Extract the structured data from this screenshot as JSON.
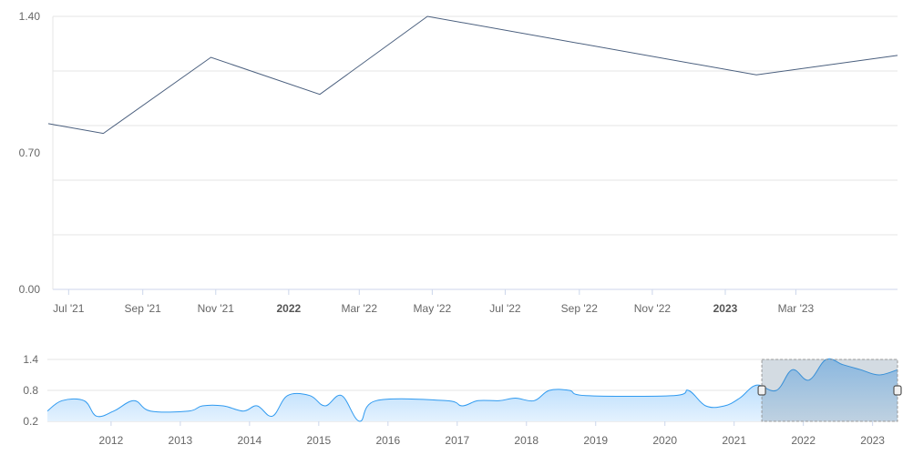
{
  "chart_data": [
    {
      "type": "line",
      "title": "",
      "xlabel": "",
      "ylabel": "",
      "ylim": [
        0,
        1.4
      ],
      "y_ticks": [
        "0.00",
        "0.70",
        "1.40"
      ],
      "x_range": [
        "2021-06-14",
        "2023-05-25"
      ],
      "x_ticks": [
        {
          "date": "2021-07-01",
          "label": "Jul '21",
          "bold": false
        },
        {
          "date": "2021-09-01",
          "label": "Sep '21",
          "bold": false
        },
        {
          "date": "2021-11-01",
          "label": "Nov '21",
          "bold": false
        },
        {
          "date": "2022-01-01",
          "label": "2022",
          "bold": true
        },
        {
          "date": "2022-03-01",
          "label": "Mar '22",
          "bold": false
        },
        {
          "date": "2022-05-01",
          "label": "May '22",
          "bold": false
        },
        {
          "date": "2022-07-01",
          "label": "Jul '22",
          "bold": false
        },
        {
          "date": "2022-09-01",
          "label": "Sep '22",
          "bold": false
        },
        {
          "date": "2022-11-01",
          "label": "Nov '22",
          "bold": false
        },
        {
          "date": "2023-01-01",
          "label": "2023",
          "bold": true
        },
        {
          "date": "2023-03-01",
          "label": "Mar '23",
          "bold": false
        }
      ],
      "grid": true,
      "series": [
        {
          "name": "main",
          "color": "#4a5f7e",
          "points": [
            [
              "2021-06-14",
              0.85
            ],
            [
              "2021-07-30",
              0.8
            ],
            [
              "2021-10-28",
              1.19
            ],
            [
              "2022-01-27",
              1.0
            ],
            [
              "2022-04-27",
              1.4
            ],
            [
              "2023-01-27",
              1.1
            ],
            [
              "2023-05-25",
              1.2
            ]
          ]
        }
      ]
    },
    {
      "type": "area",
      "title": "navigator",
      "ylim": [
        0.2,
        1.4
      ],
      "y_ticks": [
        "0.2",
        "0.8",
        "1.4"
      ],
      "x_range": [
        2011.08,
        2023.36
      ],
      "x_ticks": [
        "2012",
        "2013",
        "2014",
        "2015",
        "2016",
        "2017",
        "2018",
        "2019",
        "2020",
        "2021",
        "2022",
        "2023"
      ],
      "selection": [
        2021.4,
        2023.36
      ],
      "series": [
        {
          "name": "navigator",
          "color": "#2f9af0",
          "points": [
            [
              2011.08,
              0.4
            ],
            [
              2011.29,
              0.6
            ],
            [
              2011.61,
              0.6
            ],
            [
              2011.79,
              0.3
            ],
            [
              2012.04,
              0.4
            ],
            [
              2012.33,
              0.6
            ],
            [
              2012.57,
              0.4
            ],
            [
              2013.12,
              0.4
            ],
            [
              2013.32,
              0.5
            ],
            [
              2013.62,
              0.5
            ],
            [
              2013.91,
              0.4
            ],
            [
              2014.11,
              0.5
            ],
            [
              2014.33,
              0.3
            ],
            [
              2014.55,
              0.7
            ],
            [
              2014.87,
              0.7
            ],
            [
              2015.09,
              0.5
            ],
            [
              2015.33,
              0.7
            ],
            [
              2015.59,
              0.2
            ],
            [
              2015.83,
              0.6
            ],
            [
              2016.84,
              0.6
            ],
            [
              2017.07,
              0.5
            ],
            [
              2017.3,
              0.6
            ],
            [
              2017.61,
              0.6
            ],
            [
              2017.84,
              0.65
            ],
            [
              2018.11,
              0.6
            ],
            [
              2018.33,
              0.8
            ],
            [
              2018.62,
              0.8
            ],
            [
              2018.86,
              0.7
            ],
            [
              2020.13,
              0.7
            ],
            [
              2020.34,
              0.8
            ],
            [
              2020.59,
              0.5
            ],
            [
              2020.86,
              0.5
            ],
            [
              2021.08,
              0.65
            ],
            [
              2021.32,
              0.9
            ],
            [
              2021.61,
              0.8
            ],
            [
              2021.84,
              1.2
            ],
            [
              2022.08,
              1.0
            ],
            [
              2022.33,
              1.4
            ],
            [
              2022.57,
              1.3
            ],
            [
              2022.83,
              1.2
            ],
            [
              2023.09,
              1.1
            ],
            [
              2023.36,
              1.2
            ]
          ]
        }
      ]
    }
  ]
}
